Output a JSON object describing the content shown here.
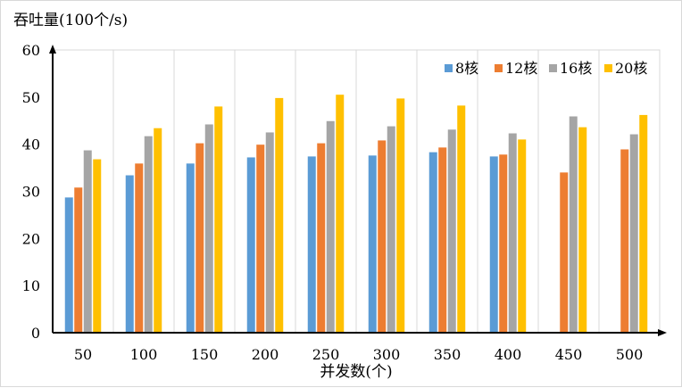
{
  "chart_data": {
    "type": "bar",
    "ylabel": "吞吐量(100个/s)",
    "xlabel": "并发数(个)",
    "categories": [
      "50",
      "100",
      "150",
      "200",
      "250",
      "300",
      "350",
      "400",
      "450",
      "500"
    ],
    "ylim": [
      0,
      60
    ],
    "yticks": [
      0,
      10,
      20,
      30,
      40,
      50,
      60
    ],
    "grid": "vertical",
    "legend_position": "top-right",
    "series": [
      {
        "name": "8核",
        "color": "#5b9bd5",
        "values": [
          28.7,
          33.4,
          35.9,
          37.2,
          37.4,
          37.6,
          38.3,
          37.4,
          null,
          null
        ]
      },
      {
        "name": "12核",
        "color": "#ed7d31",
        "values": [
          30.8,
          35.9,
          40.2,
          39.9,
          40.2,
          40.8,
          39.3,
          37.8,
          34.0,
          38.9
        ]
      },
      {
        "name": "16核",
        "color": "#a5a5a5",
        "values": [
          38.7,
          41.7,
          44.2,
          42.5,
          44.9,
          43.8,
          43.1,
          42.3,
          45.9,
          42.1
        ]
      },
      {
        "name": "20核",
        "color": "#ffc000",
        "values": [
          36.8,
          43.4,
          48.0,
          49.8,
          50.5,
          49.7,
          48.2,
          41.0,
          43.6,
          46.2
        ]
      }
    ]
  }
}
